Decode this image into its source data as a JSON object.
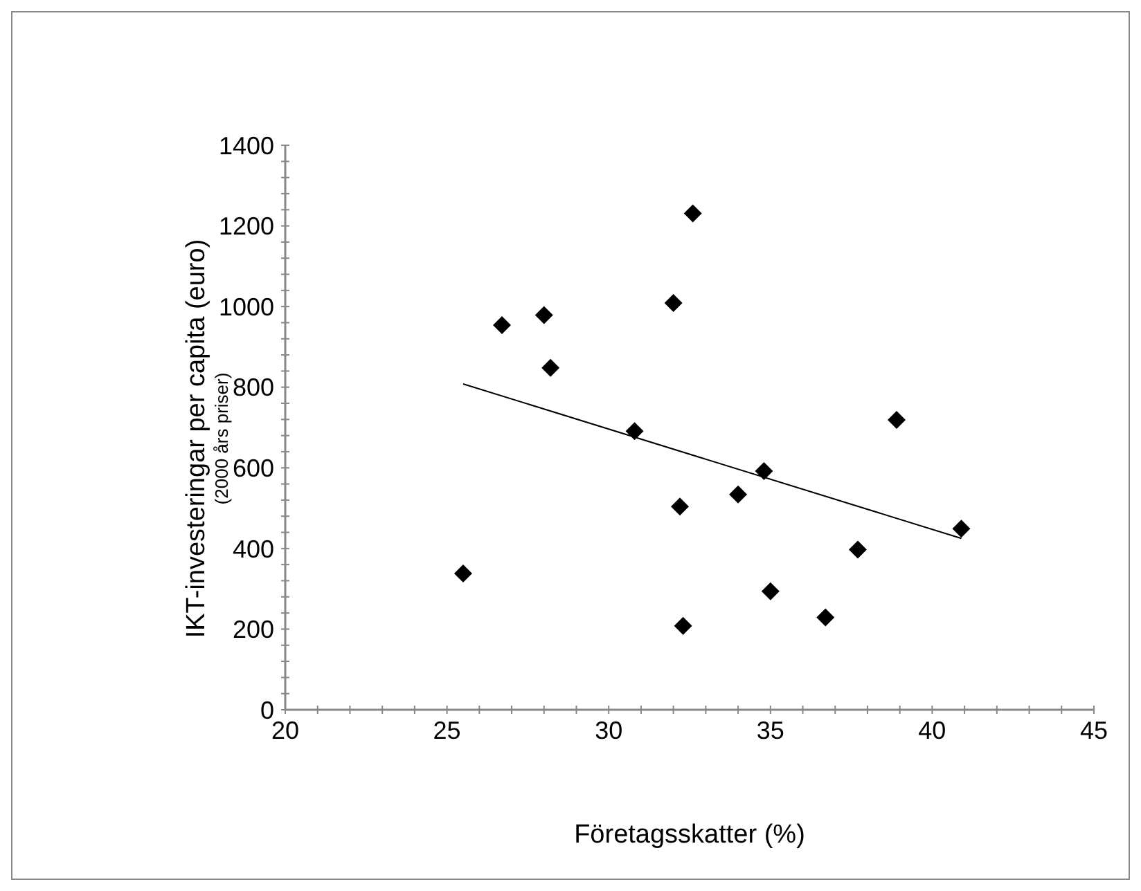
{
  "chart_data": {
    "type": "scatter",
    "xlabel": "Företagsskatter (%)",
    "ylabel": "IKT-investeringar per capita (euro)\n(2000 års priser)",
    "marker": "diamond",
    "xlim": [
      20,
      45
    ],
    "xticks": [
      20,
      {
        "value": 21,
        "label": null
      },
      {
        "value": 22,
        "label": null
      },
      {
        "value": 23,
        "label": null
      },
      {
        "value": 24,
        "label": null
      },
      25,
      {
        "value": 26,
        "label": null
      },
      {
        "value": 27,
        "label": null
      },
      {
        "value": 28,
        "label": null
      },
      {
        "value": 29,
        "label": null
      },
      30,
      {
        "value": 31,
        "label": null
      },
      {
        "value": 32,
        "label": null
      },
      {
        "value": 33,
        "label": null
      },
      {
        "value": 34,
        "label": null
      },
      35,
      {
        "value": 36,
        "label": null
      },
      {
        "value": 37,
        "label": null
      },
      {
        "value": 38,
        "label": null
      },
      {
        "value": 39,
        "label": null
      },
      40,
      {
        "value": 41,
        "label": null
      },
      {
        "value": 42,
        "label": null
      },
      {
        "value": 43,
        "label": null
      },
      {
        "value": 44,
        "label": null
      },
      45
    ],
    "ylim": [
      0,
      1400
    ],
    "yticks": [
      0,
      {
        "value": 40,
        "label": null
      },
      {
        "value": 80,
        "label": null
      },
      {
        "value": 120,
        "label": null
      },
      {
        "value": 160,
        "label": null
      },
      200,
      {
        "value": 240,
        "label": null
      },
      {
        "value": 280,
        "label": null
      },
      {
        "value": 320,
        "label": null
      },
      {
        "value": 360,
        "label": null
      },
      400,
      {
        "value": 440,
        "label": null
      },
      {
        "value": 480,
        "label": null
      },
      {
        "value": 520,
        "label": null
      },
      {
        "value": 560,
        "label": null
      },
      600,
      {
        "value": 640,
        "label": null
      },
      {
        "value": 680,
        "label": null
      },
      {
        "value": 720,
        "label": null
      },
      {
        "value": 760,
        "label": null
      },
      800,
      {
        "value": 840,
        "label": null
      },
      {
        "value": 880,
        "label": null
      },
      {
        "value": 920,
        "label": null
      },
      {
        "value": 960,
        "label": null
      },
      1000,
      {
        "value": 1040,
        "label": null
      },
      {
        "value": 1080,
        "label": null
      },
      {
        "value": 1120,
        "label": null
      },
      {
        "value": 1160,
        "label": null
      },
      1200,
      {
        "value": 1240,
        "label": null
      },
      {
        "value": 1280,
        "label": null
      },
      {
        "value": 1320,
        "label": null
      },
      {
        "value": 1360,
        "label": null
      },
      1400
    ],
    "series": [
      {
        "type": "scatter",
        "color": "#000000",
        "x": [
          25.5,
          26.7,
          28.0,
          28.2,
          30.8,
          32.0,
          32.2,
          32.3,
          32.6,
          34.0,
          34.8,
          35.0,
          36.7,
          37.7,
          38.9,
          40.9
        ],
        "values": [
          338,
          954,
          979,
          848,
          691,
          1009,
          504,
          208,
          1231,
          534,
          592,
          294,
          229,
          397,
          719,
          449
        ]
      },
      {
        "type": "line",
        "color": "#000000",
        "marker": "none",
        "x": [
          25.5,
          40.9
        ],
        "values": [
          808,
          425
        ]
      }
    ]
  }
}
